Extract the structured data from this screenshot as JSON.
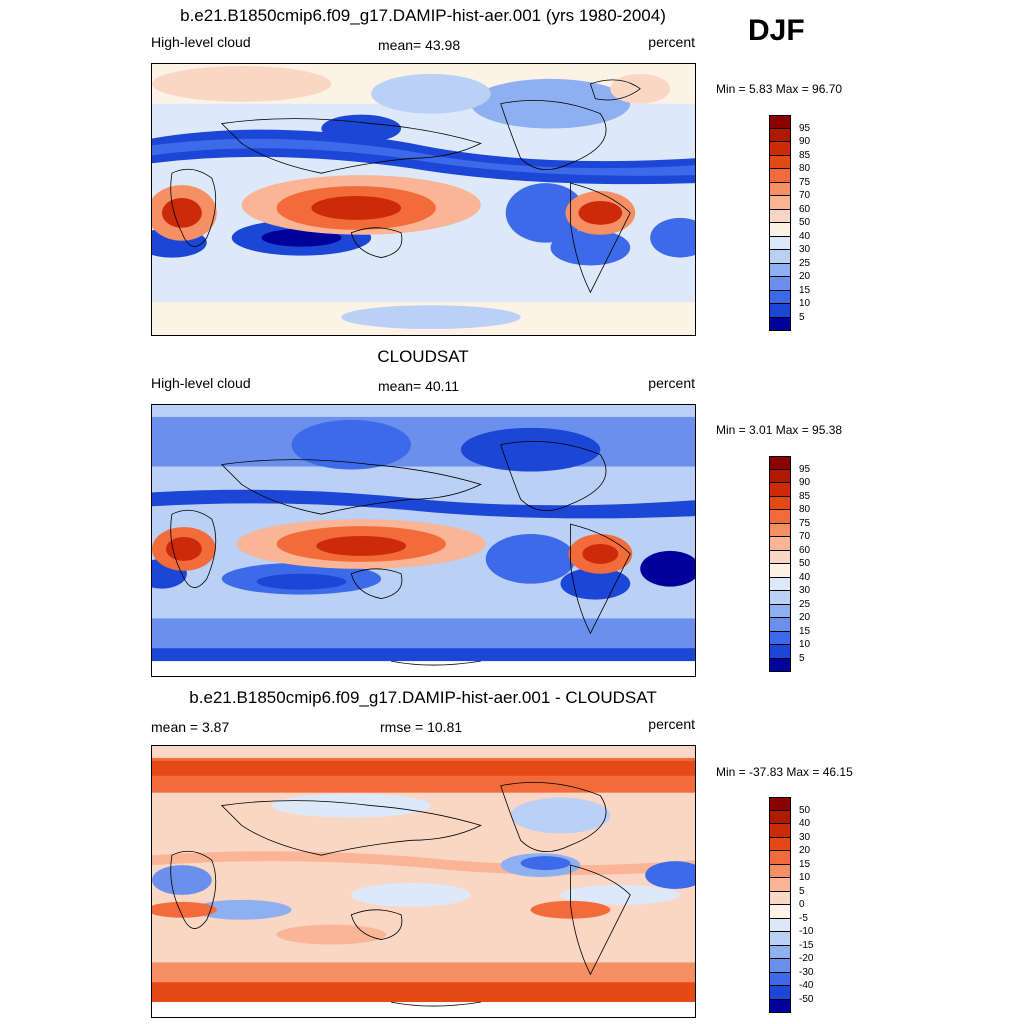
{
  "season": "DJF",
  "panels": [
    {
      "title": "b.e21.B1850cmip6.f09_g17.DAMIP-hist-aer.001 (yrs 1980-2004)",
      "left_label": "High-level cloud",
      "center_label": "mean=  43.98",
      "right_label": "percent",
      "minmax": "Min =   5.83 Max =  96.70"
    },
    {
      "title": "CLOUDSAT",
      "left_label": "High-level cloud",
      "center_label": "mean=  40.11",
      "right_label": "percent",
      "minmax": "Min =   3.01 Max =  95.38"
    },
    {
      "title": "b.e21.B1850cmip6.f09_g17.DAMIP-hist-aer.001 - CLOUDSAT",
      "left_label": "mean =   3.87",
      "center_label": "rmse =  10.81",
      "right_label": "percent",
      "minmax": "Min = -37.83 Max =  46.15"
    }
  ],
  "colorbars": {
    "absolute": {
      "labels": [
        "95",
        "90",
        "85",
        "80",
        "75",
        "70",
        "60",
        "50",
        "40",
        "30",
        "25",
        "20",
        "15",
        "10",
        "5"
      ],
      "colors": [
        "#8b0000",
        "#b01a00",
        "#cc2a08",
        "#e64a14",
        "#f26b3a",
        "#f78f64",
        "#f9b596",
        "#fad7c4",
        "#fdf2e6",
        "#dde9f9",
        "#bad0f5",
        "#8fb0f0",
        "#6a90ec",
        "#3d6ae8",
        "#1c46d6",
        "#00009a"
      ]
    },
    "difference": {
      "labels": [
        "50",
        "40",
        "30",
        "20",
        "15",
        "10",
        "5",
        "0",
        "-5",
        "-10",
        "-15",
        "-20",
        "-30",
        "-40",
        "-50"
      ],
      "colors": [
        "#8b0000",
        "#b01a00",
        "#cc2a08",
        "#e64a14",
        "#f26b3a",
        "#f78f64",
        "#f9b596",
        "#fad7c4",
        "#fdf2e6",
        "#dde9f9",
        "#bad0f5",
        "#8fb0f0",
        "#6a90ec",
        "#3d6ae8",
        "#1c46d6",
        "#00009a"
      ]
    }
  }
}
